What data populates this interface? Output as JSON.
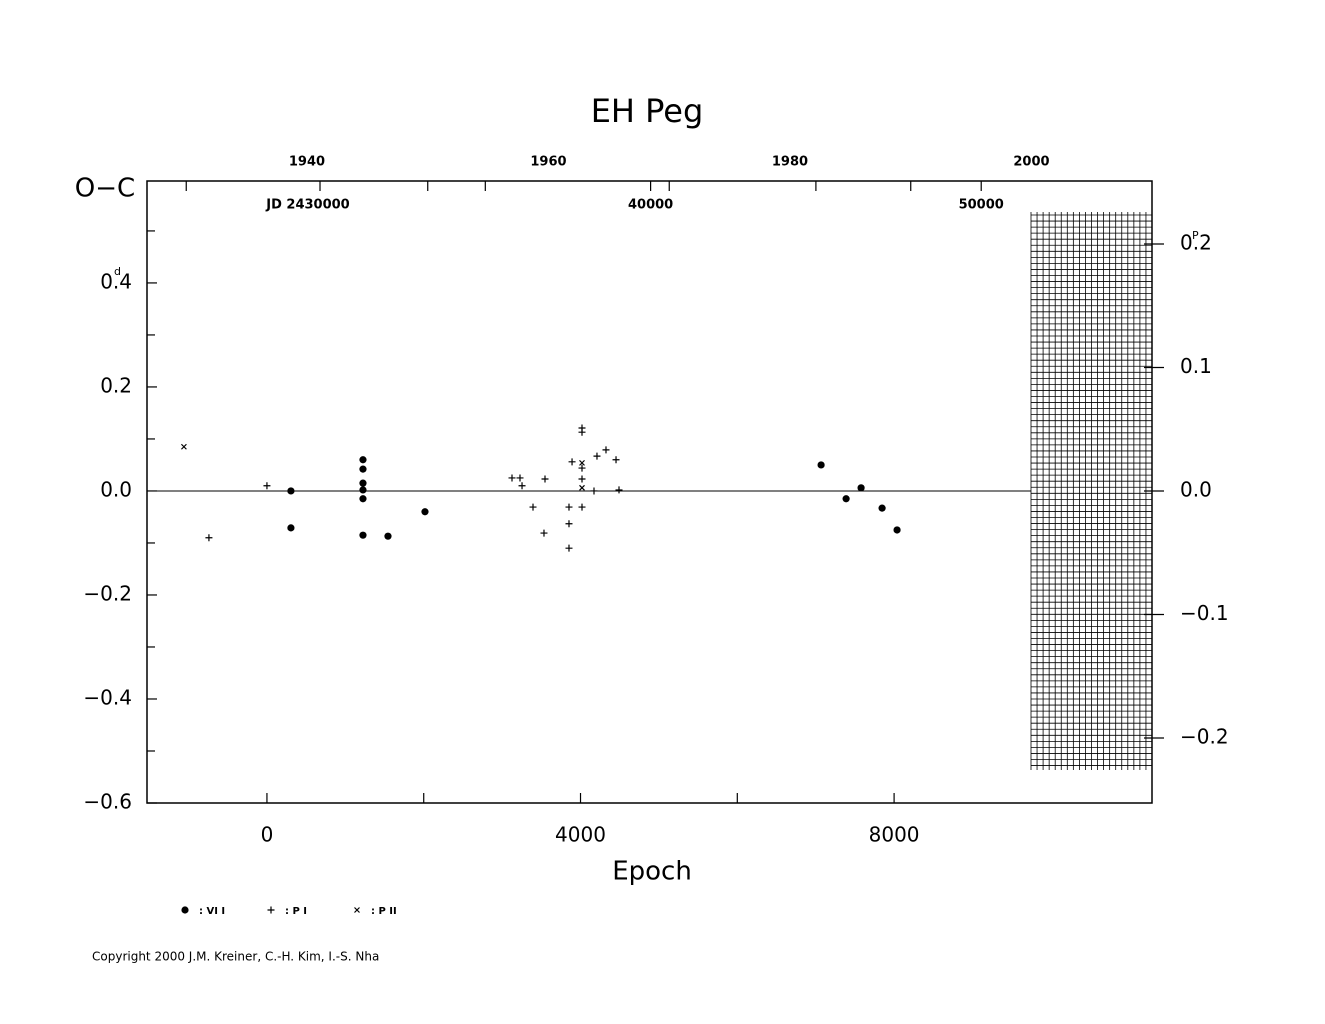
{
  "chart_data": {
    "type": "scatter",
    "title": "EH Peg",
    "ylabel": "O−C",
    "xlabel": "Epoch",
    "yunit": "d",
    "y2unit": "P",
    "xlim": [
      -1530,
      11290
    ],
    "xticks": [
      0,
      4000,
      8000
    ],
    "xminor": [
      2000,
      6000,
      10000
    ],
    "ylim": [
      -0.6,
      0.596
    ],
    "yticks": [
      {
        "value": -0.6,
        "label": "−0.6"
      },
      {
        "value": -0.4,
        "label": "−0.4"
      },
      {
        "value": -0.2,
        "label": "−0.2"
      },
      {
        "value": 0,
        "label": "0.0"
      },
      0.2,
      0.4
    ],
    "yminor": [
      -0.5,
      -0.3,
      -0.1,
      0.1,
      0.3,
      0.5
    ],
    "y2lim": [
      -0.2526,
      0.251
    ],
    "y2ticks": [
      {
        "value": -0.2,
        "label": "−0.2"
      },
      {
        "value": -0.1,
        "label": "−0.1"
      },
      {
        "value": 0,
        "label": "0.0"
      },
      0.1,
      0.2
    ],
    "x2lim": [
      1926.75,
      2009.98
    ],
    "x2ticks": [
      1940,
      1960,
      1980,
      2000
    ],
    "x2minor": [
      1930,
      1950,
      1970,
      1990
    ],
    "x3lim": [
      2424767,
      2455166
    ],
    "x3ticks": [
      {
        "value": 2430000,
        "label": "JD 2430000"
      },
      {
        "value": 2440000,
        "label": "40000"
      },
      {
        "value": 2450000,
        "label": "50000"
      }
    ],
    "x3minor": [
      2435000,
      2445000
    ],
    "series": [
      {
        "name": ": VI I",
        "marker": "circle",
        "color": "#000000",
        "x": [
          306,
          306,
          1225,
          1225,
          1225,
          1225,
          1225,
          1225,
          1544,
          2016,
          7069,
          7388,
          7579,
          7847,
          8038
        ],
        "values": [
          0.0,
          -0.071,
          0.06,
          0.042,
          0.015,
          0.002,
          -0.015,
          -0.085,
          -0.087,
          -0.04,
          0.05,
          -0.015,
          0.006,
          -0.033,
          -0.075
        ]
      },
      {
        "name": ": P I",
        "marker": "plus",
        "color": "#000000",
        "x": [
          -740,
          0,
          3126,
          3228,
          3254,
          3394,
          3547,
          3534,
          3853,
          3853,
          3853,
          3892,
          4019,
          4019,
          4019,
          4019,
          4019,
          4172,
          4210,
          4325,
          4453,
          4491
        ],
        "values": [
          -0.09,
          0.01,
          0.025,
          0.025,
          0.01,
          -0.031,
          0.023,
          -0.081,
          -0.11,
          -0.063,
          -0.031,
          0.056,
          0.121,
          0.113,
          0.044,
          0.023,
          -0.031,
          0.0,
          0.067,
          0.079,
          0.06,
          0.002
        ]
      },
      {
        "name": ": P II",
        "marker": "cross",
        "color": "#000000",
        "x": [
          -1059,
          4019,
          4019
        ],
        "values": [
          0.085,
          0.054,
          0.006
        ]
      }
    ],
    "copyright": "Copyright 2000 J.M. Kreiner, C.-H. Kim, I.-S. Nha"
  }
}
